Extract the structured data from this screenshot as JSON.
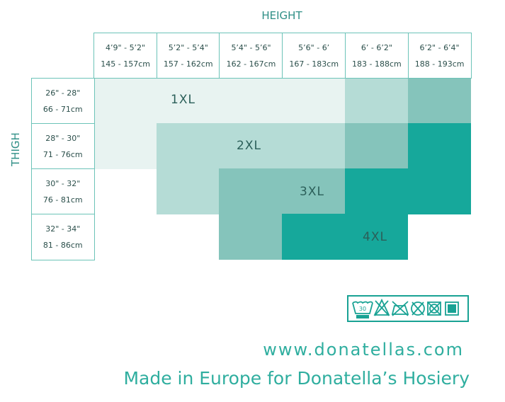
{
  "height_label": "HEIGHT",
  "thigh_label": "THIGH",
  "height_columns": [
    {
      "imperial": "4’9\" - 5’2\"",
      "metric": "145 - 157cm"
    },
    {
      "imperial": "5’2\" - 5’4\"",
      "metric": "157 - 162cm"
    },
    {
      "imperial": "5’4\" - 5’6\"",
      "metric": "162 - 167cm"
    },
    {
      "imperial": "5’6\" - 6’",
      "metric": "167 - 183cm"
    },
    {
      "imperial": "6’ - 6’2\"",
      "metric": "183 - 188cm"
    },
    {
      "imperial": "6’2\" - 6’4\"",
      "metric": "188 - 193cm"
    }
  ],
  "thigh_rows": [
    {
      "imperial": "26\" - 28\"",
      "metric": "66 - 71cm"
    },
    {
      "imperial": "28\" - 30\"",
      "metric": "71 - 76cm"
    },
    {
      "imperial": "30\" - 32\"",
      "metric": "76 - 81cm"
    },
    {
      "imperial": "32\" - 34\"",
      "metric": "81 - 86cm"
    }
  ],
  "tone_colors": {
    "L": "#e8f3f1",
    "M": "#b5dcd6",
    "D": "#85c4bb",
    "T": "#16a89b"
  },
  "grid_tones": [
    [
      "L",
      "L",
      "L",
      "L",
      "M",
      "D"
    ],
    [
      "L",
      "M",
      "M",
      "M",
      "D",
      "T"
    ],
    [
      "",
      "M",
      "D",
      "D",
      "T",
      "T"
    ],
    [
      "",
      "",
      "D",
      "T",
      "T",
      ""
    ]
  ],
  "sizes": [
    "1XL",
    "2XL",
    "3XL",
    "4XL"
  ],
  "care_icons": [
    "wash-30-icon",
    "no-bleach-icon",
    "no-iron-icon",
    "no-dry-clean-icon",
    "no-tumble-dry-icon",
    "dry-flat-icon"
  ],
  "care_wash_temp": "30",
  "website": "www.donatellas.com",
  "tagline": "Made in Europe for Donatella’s Hosiery"
}
